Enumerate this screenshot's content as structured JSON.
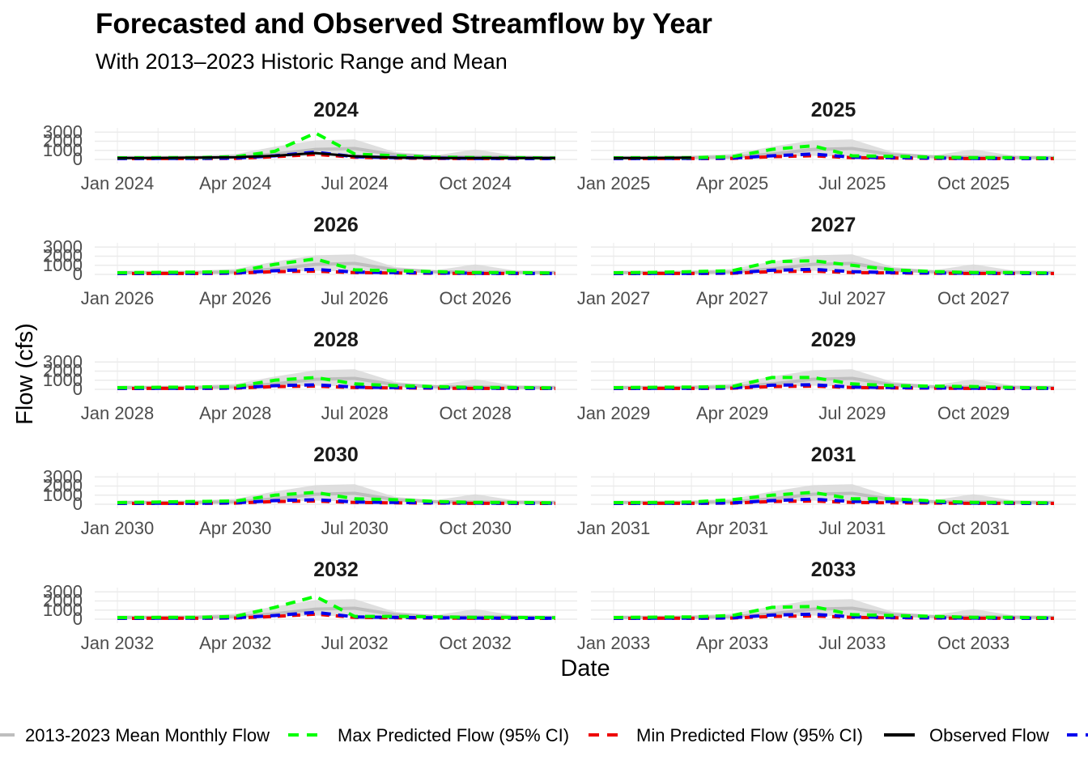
{
  "title": "Forecasted and Observed Streamflow by Year",
  "subtitle": "With 2013–2023 Historic Range and Mean",
  "chart_data": {
    "type": "line",
    "title": "Forecasted and Observed Streamflow by Year",
    "subtitle": "With 2013–2023 Historic Range and Mean",
    "xlabel": "Date",
    "ylabel": "Flow (cfs)",
    "ylim": [
      0,
      3200
    ],
    "y_ticks": [
      0,
      1000,
      2000,
      3000
    ],
    "grid": true,
    "legend_position": "bottom",
    "month_ticks": [
      "Jan",
      "Apr",
      "Jul",
      "Oct"
    ],
    "historic": {
      "mean": [
        200,
        200,
        210,
        260,
        600,
        1100,
        1200,
        500,
        280,
        240,
        220,
        200
      ],
      "range_low": [
        120,
        120,
        130,
        150,
        250,
        400,
        300,
        180,
        150,
        140,
        130,
        120
      ],
      "range_high": [
        350,
        350,
        400,
        600,
        1400,
        2100,
        2200,
        800,
        450,
        1100,
        400,
        350
      ]
    },
    "series_legend": [
      {
        "name": "2013-2023 Mean Monthly Flow",
        "color": "#bebebe",
        "dash": "solid"
      },
      {
        "name": "Max Predicted Flow (95% CI)",
        "color": "#00ff00",
        "dash": "dashed"
      },
      {
        "name": "Min Predicted Flow (95% CI)",
        "color": "#ee0000",
        "dash": "dashed"
      },
      {
        "name": "Observed Flow",
        "color": "#000000",
        "dash": "solid"
      },
      {
        "name": "",
        "color": "#0000ee",
        "dash": "dashed"
      }
    ],
    "panels": [
      {
        "year": "2024",
        "max": [
          180,
          200,
          200,
          300,
          900,
          2900,
          600,
          400,
          250,
          200,
          200,
          150
        ],
        "min": [
          90,
          100,
          100,
          120,
          300,
          550,
          250,
          150,
          120,
          100,
          100,
          90
        ],
        "blue": [
          100,
          110,
          110,
          150,
          400,
          800,
          300,
          200,
          150,
          120,
          110,
          100
        ],
        "observed": [
          150,
          150,
          200,
          250,
          400,
          700,
          350,
          200,
          150,
          150,
          150,
          150
        ]
      },
      {
        "year": "2025",
        "max": [
          180,
          200,
          200,
          300,
          1100,
          1500,
          400,
          350,
          250,
          200,
          200,
          150
        ],
        "min": [
          90,
          100,
          100,
          120,
          300,
          400,
          200,
          150,
          120,
          100,
          100,
          90
        ],
        "blue": [
          100,
          110,
          110,
          150,
          400,
          600,
          250,
          200,
          150,
          120,
          110,
          100
        ],
        "observed": [
          150,
          150,
          200,
          null,
          null,
          null,
          null,
          null,
          null,
          null,
          null,
          null
        ]
      },
      {
        "year": "2026",
        "max": [
          180,
          220,
          250,
          300,
          1100,
          1700,
          500,
          400,
          300,
          200,
          200,
          150
        ],
        "min": [
          90,
          100,
          100,
          120,
          300,
          350,
          200,
          150,
          120,
          100,
          100,
          90
        ],
        "blue": [
          100,
          110,
          110,
          150,
          400,
          550,
          250,
          200,
          150,
          120,
          110,
          100
        ],
        "observed": [
          null,
          null,
          null,
          null,
          null,
          null,
          null,
          null,
          null,
          null,
          null,
          null
        ]
      },
      {
        "year": "2027",
        "max": [
          180,
          220,
          300,
          400,
          1400,
          1500,
          1000,
          500,
          300,
          200,
          200,
          150
        ],
        "min": [
          90,
          100,
          100,
          120,
          300,
          350,
          200,
          150,
          120,
          100,
          100,
          90
        ],
        "blue": [
          100,
          110,
          110,
          150,
          450,
          550,
          300,
          200,
          150,
          120,
          110,
          100
        ],
        "observed": [
          null,
          null,
          null,
          null,
          null,
          null,
          null,
          null,
          null,
          null,
          null,
          null
        ]
      },
      {
        "year": "2028",
        "max": [
          180,
          220,
          250,
          300,
          1000,
          1300,
          600,
          400,
          300,
          200,
          200,
          150
        ],
        "min": [
          90,
          100,
          100,
          120,
          300,
          350,
          200,
          150,
          120,
          100,
          100,
          90
        ],
        "blue": [
          100,
          110,
          110,
          150,
          400,
          500,
          250,
          200,
          150,
          120,
          110,
          100
        ],
        "observed": [
          null,
          null,
          null,
          null,
          null,
          null,
          null,
          null,
          null,
          null,
          null,
          null
        ]
      },
      {
        "year": "2029",
        "max": [
          180,
          220,
          250,
          300,
          1300,
          1300,
          600,
          400,
          350,
          300,
          200,
          150
        ],
        "min": [
          90,
          100,
          100,
          120,
          300,
          350,
          200,
          150,
          120,
          100,
          100,
          90
        ],
        "blue": [
          100,
          110,
          110,
          150,
          450,
          500,
          250,
          200,
          150,
          120,
          110,
          100
        ],
        "observed": [
          null,
          null,
          null,
          null,
          null,
          null,
          null,
          null,
          null,
          null,
          null,
          null
        ]
      },
      {
        "year": "2030",
        "max": [
          180,
          250,
          300,
          350,
          1000,
          1300,
          600,
          500,
          300,
          200,
          200,
          150
        ],
        "min": [
          90,
          100,
          100,
          120,
          300,
          350,
          200,
          150,
          120,
          100,
          100,
          90
        ],
        "blue": [
          100,
          110,
          110,
          150,
          400,
          500,
          250,
          200,
          150,
          120,
          110,
          100
        ],
        "observed": [
          null,
          null,
          null,
          null,
          null,
          null,
          null,
          null,
          null,
          null,
          null,
          null
        ]
      },
      {
        "year": "2031",
        "max": [
          180,
          200,
          250,
          500,
          1000,
          1300,
          600,
          600,
          350,
          200,
          200,
          150
        ],
        "min": [
          90,
          100,
          100,
          120,
          300,
          350,
          200,
          150,
          120,
          100,
          100,
          90
        ],
        "blue": [
          100,
          110,
          110,
          150,
          400,
          550,
          300,
          300,
          200,
          120,
          110,
          100
        ],
        "observed": [
          null,
          null,
          null,
          null,
          null,
          null,
          null,
          null,
          null,
          null,
          null,
          null
        ]
      },
      {
        "year": "2032",
        "max": [
          180,
          200,
          200,
          300,
          1300,
          2500,
          300,
          300,
          250,
          200,
          200,
          150
        ],
        "min": [
          90,
          100,
          100,
          120,
          300,
          550,
          200,
          150,
          120,
          100,
          100,
          90
        ],
        "blue": [
          100,
          110,
          110,
          150,
          400,
          750,
          250,
          200,
          150,
          120,
          110,
          100
        ],
        "observed": [
          null,
          null,
          null,
          null,
          null,
          null,
          null,
          null,
          null,
          null,
          null,
          null
        ]
      },
      {
        "year": "2033",
        "max": [
          180,
          220,
          250,
          400,
          1300,
          1400,
          500,
          400,
          300,
          200,
          200,
          150
        ],
        "min": [
          90,
          100,
          100,
          120,
          300,
          350,
          200,
          150,
          120,
          100,
          100,
          90
        ],
        "blue": [
          100,
          110,
          110,
          150,
          450,
          550,
          250,
          200,
          150,
          120,
          110,
          100
        ],
        "observed": [
          null,
          null,
          null,
          null,
          null,
          null,
          null,
          null,
          null,
          null,
          null,
          null
        ]
      }
    ]
  }
}
